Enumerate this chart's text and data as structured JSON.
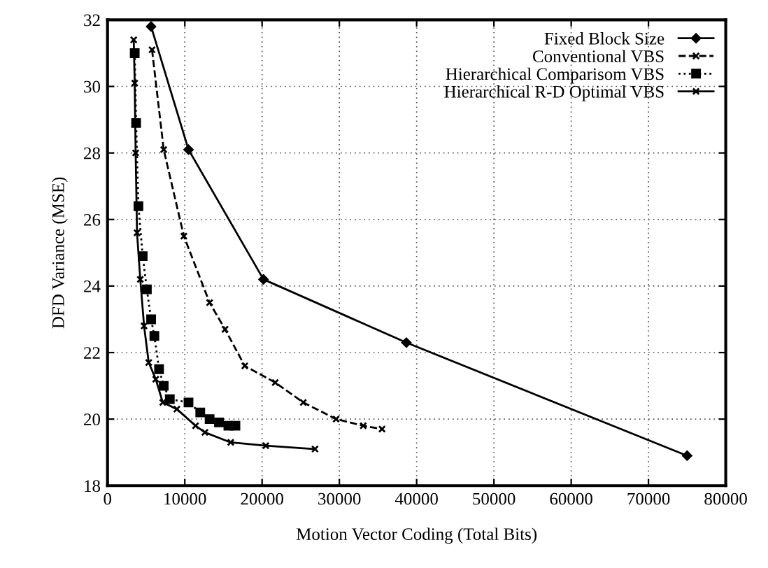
{
  "chart_data": {
    "type": "line",
    "xlabel": "Motion Vector Coding (Total Bits)",
    "ylabel": "DFD Variance (MSE)",
    "xlim": [
      0,
      80000
    ],
    "ylim": [
      18,
      32
    ],
    "xticks": [
      0,
      10000,
      20000,
      30000,
      40000,
      50000,
      60000,
      70000,
      80000
    ],
    "yticks": [
      18,
      20,
      22,
      24,
      26,
      28,
      30,
      32
    ],
    "grid": true,
    "legend": "top right",
    "series": [
      {
        "name": "Fixed Block Size",
        "color": "#000000",
        "marker": "diamond",
        "line_style": "solid",
        "x": [
          5640,
          10480,
          20180,
          38670,
          75000
        ],
        "values": [
          31.8,
          28.1,
          24.2,
          22.3,
          18.9
        ]
      },
      {
        "name": "Conventional VBS",
        "color": "#000000",
        "marker": "cross",
        "line_style": "dashed",
        "x": [
          5760,
          7270,
          9880,
          13210,
          15210,
          17760,
          21700,
          25330,
          29580,
          33090,
          35520
        ],
        "values": [
          31.1,
          28.1,
          25.5,
          23.5,
          22.7,
          21.6,
          21.1,
          20.5,
          20.0,
          19.8,
          19.7
        ]
      },
      {
        "name": "Hierarchical Comparisom VBS",
        "color": "#000000",
        "marker": "square",
        "line_style": "dotted",
        "x": [
          3520,
          3700,
          4000,
          4550,
          5090,
          5640,
          6060,
          6670,
          7270,
          8060,
          10480,
          12000,
          13210,
          14420,
          15640,
          16550
        ],
        "values": [
          31.0,
          28.9,
          26.4,
          24.9,
          23.9,
          23.0,
          22.5,
          21.5,
          21.0,
          20.6,
          20.5,
          20.2,
          20.0,
          19.9,
          19.8,
          19.8
        ]
      },
      {
        "name": "Hierarchical R-D Optimal VBS",
        "color": "#000000",
        "marker": "cross",
        "line_style": "solid",
        "x": [
          3390,
          3520,
          3640,
          3820,
          4240,
          4730,
          5330,
          6240,
          7150,
          8970,
          11390,
          12600,
          15940,
          20480,
          26850
        ],
        "values": [
          31.4,
          30.1,
          28.0,
          25.6,
          24.2,
          22.8,
          21.7,
          21.2,
          20.5,
          20.3,
          19.8,
          19.6,
          19.3,
          19.2,
          19.1
        ]
      }
    ]
  }
}
